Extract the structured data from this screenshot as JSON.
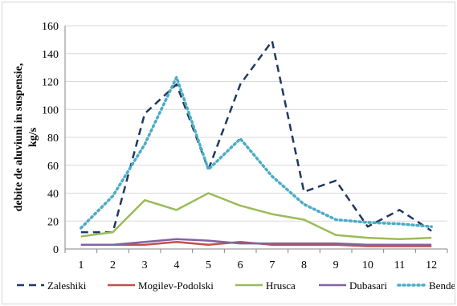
{
  "chart_data": {
    "type": "line",
    "title": "",
    "xlabel": "",
    "ylabel": "debite de aluviuni in suspensie, kg/s",
    "ylabel_lines": [
      "debite de aluviuni in suspensie,",
      "kg/s"
    ],
    "x": [
      1,
      2,
      3,
      4,
      5,
      6,
      7,
      8,
      9,
      10,
      11,
      12
    ],
    "ylim": [
      0,
      160
    ],
    "yticks": [
      0,
      20,
      40,
      60,
      80,
      100,
      120,
      140,
      160
    ],
    "grid": "horizontal",
    "legend": "bottom",
    "series": [
      {
        "name": "Zaleshiki",
        "color": "#1f3864",
        "dash": "dashed",
        "values": [
          12,
          12,
          97,
          118,
          57,
          118,
          149,
          41,
          49,
          16,
          28,
          13
        ]
      },
      {
        "name": "Mogilev-Podolski",
        "color": "#c0504d",
        "dash": "solid",
        "values": [
          3,
          3,
          3,
          5,
          3,
          5,
          3,
          3,
          3,
          2,
          2,
          2
        ]
      },
      {
        "name": "Hrusca",
        "color": "#9bbb59",
        "dash": "solid",
        "values": [
          9,
          12,
          35,
          28,
          40,
          31,
          25,
          21,
          10,
          8,
          7,
          8
        ]
      },
      {
        "name": "Dubasari",
        "color": "#8064a2",
        "dash": "solid",
        "values": [
          3,
          3,
          5,
          7,
          6,
          4,
          4,
          4,
          4,
          3,
          3,
          3
        ]
      },
      {
        "name": "Bender",
        "color": "#4bacc6",
        "dash": "dotted",
        "values": [
          15,
          38,
          75,
          123,
          57,
          79,
          52,
          32,
          21,
          19,
          18,
          16
        ]
      }
    ]
  }
}
